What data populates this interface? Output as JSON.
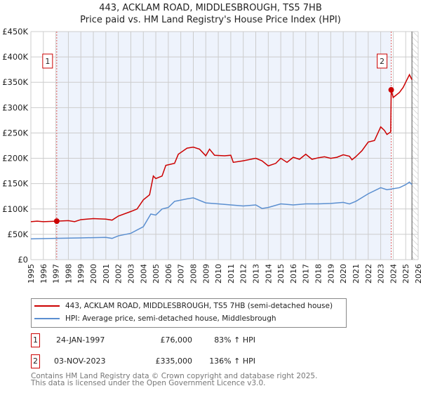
{
  "header": {
    "line1": "443, ACKLAM ROAD, MIDDLESBROUGH, TS5 7HB",
    "line2": "Price paid vs. HM Land Registry's House Price Index (HPI)"
  },
  "chart_data": {
    "type": "line",
    "title": "443, ACKLAM ROAD, MIDDLESBROUGH, TS5 7HB — Price paid vs. HM Land Registry's House Price Index (HPI)",
    "xlim": [
      1995,
      2026
    ],
    "ylim": [
      0,
      450000
    ],
    "yticks": [
      {
        "v": 0,
        "label": "£0"
      },
      {
        "v": 50000,
        "label": "£50K"
      },
      {
        "v": 100000,
        "label": "£100K"
      },
      {
        "v": 150000,
        "label": "£150K"
      },
      {
        "v": 200000,
        "label": "£200K"
      },
      {
        "v": 250000,
        "label": "£250K"
      },
      {
        "v": 300000,
        "label": "£300K"
      },
      {
        "v": 350000,
        "label": "£350K"
      },
      {
        "v": 400000,
        "label": "£400K"
      },
      {
        "v": 450000,
        "label": "£450K"
      }
    ],
    "xticks": [
      "1995",
      "1996",
      "1997",
      "1998",
      "1999",
      "2000",
      "2001",
      "2002",
      "2003",
      "2004",
      "2005",
      "2006",
      "2007",
      "2008",
      "2009",
      "2010",
      "2011",
      "2012",
      "2013",
      "2014",
      "2015",
      "2016",
      "2017",
      "2018",
      "2019",
      "2020",
      "2021",
      "2022",
      "2023",
      "2024",
      "2025",
      "2026"
    ],
    "shaded_range": [
      1997.07,
      2023.84
    ],
    "hatched_from": 2025.5,
    "series": [
      {
        "name": "443, ACKLAM ROAD, MIDDLESBROUGH, TS5 7HB (semi-detached house)",
        "color": "#cc0000",
        "x": [
          1995,
          1995.5,
          1996,
          1997.07,
          1998,
          1998.5,
          1999,
          2000,
          2001,
          2001.5,
          2002,
          2003,
          2003.5,
          2004,
          2004.5,
          2004.8,
          2005,
          2005.5,
          2005.8,
          2006.5,
          2006.8,
          2007.5,
          2008,
          2008.5,
          2009,
          2009.3,
          2009.7,
          2010.5,
          2011,
          2011.2,
          2012,
          2013,
          2013.5,
          2014,
          2014.6,
          2015,
          2015.5,
          2016,
          2016.5,
          2017,
          2017.5,
          2018,
          2018.5,
          2019,
          2019.5,
          2020,
          2020.5,
          2020.7,
          2021,
          2021.5,
          2022,
          2022.5,
          2023,
          2023.3,
          2023.5,
          2023.8,
          2023.84,
          2024,
          2024.5,
          2024.8,
          2025,
          2025.3,
          2025.5
        ],
        "y": [
          75000,
          76000,
          75000,
          76000,
          77000,
          75000,
          79000,
          81000,
          80000,
          78000,
          86000,
          95000,
          100000,
          118000,
          128000,
          165000,
          160000,
          165000,
          186000,
          190000,
          208000,
          220000,
          222000,
          218000,
          205000,
          218000,
          206000,
          205000,
          206000,
          192000,
          195000,
          200000,
          195000,
          185000,
          190000,
          200000,
          192000,
          202000,
          198000,
          208000,
          198000,
          201000,
          203000,
          200000,
          202000,
          207000,
          204000,
          197000,
          203000,
          215000,
          232000,
          235000,
          262000,
          255000,
          247000,
          252000,
          335000,
          320000,
          330000,
          340000,
          350000,
          365000,
          355000
        ]
      },
      {
        "name": "HPI: Average price, semi-detached house, Middlesbrough",
        "color": "#5b8fd0",
        "x": [
          1995,
          1997,
          1999,
          2001,
          2001.5,
          2002,
          2003,
          2004,
          2004.6,
          2005,
          2005.5,
          2006,
          2006.5,
          2007.5,
          2008,
          2009,
          2010,
          2011,
          2012,
          2013,
          2013.5,
          2014,
          2015,
          2016,
          2017,
          2018,
          2019,
          2020,
          2020.5,
          2021,
          2022,
          2023,
          2023.5,
          2024,
          2024.5,
          2025,
          2025.3,
          2025.5
        ],
        "y": [
          41000,
          42000,
          43000,
          44000,
          42000,
          47000,
          52000,
          65000,
          90000,
          88000,
          100000,
          103000,
          115000,
          120000,
          122000,
          112000,
          110000,
          108000,
          106000,
          108000,
          101000,
          103000,
          110000,
          108000,
          110000,
          110000,
          111000,
          113000,
          110000,
          115000,
          130000,
          142000,
          138000,
          140000,
          142000,
          148000,
          153000,
          148000
        ]
      }
    ],
    "sales": [
      {
        "id": "1",
        "x": 1997.07,
        "y": 76000
      },
      {
        "id": "2",
        "x": 2023.84,
        "y": 335000
      }
    ]
  },
  "legend": {
    "item1": "443, ACKLAM ROAD, MIDDLESBROUGH, TS5 7HB (semi-detached house)",
    "item2": "HPI: Average price, semi-detached house, Middlesbrough"
  },
  "transactions": [
    {
      "num": "1",
      "date": "24-JAN-1997",
      "price": "£76,000",
      "hpi": "83% ↑ HPI"
    },
    {
      "num": "2",
      "date": "03-NOV-2023",
      "price": "£335,000",
      "hpi": "136% ↑ HPI"
    }
  ],
  "footer": {
    "line1": "Contains HM Land Registry data © Crown copyright and database right 2025.",
    "line2": "This data is licensed under the Open Government Licence v3.0."
  }
}
